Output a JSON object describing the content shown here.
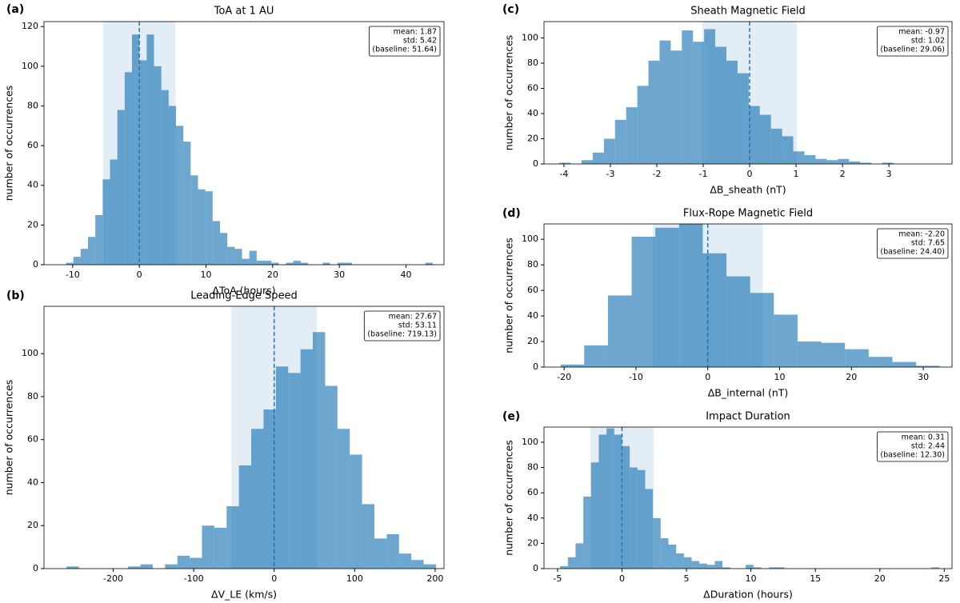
{
  "chart_data": [
    {
      "type": "histogram",
      "label": "(a)",
      "title": "ToA at 1 AU",
      "xlabel": "ΔToA (hours)",
      "ylabel": "number of occurrences",
      "color": "#1f77b4",
      "bins": [
        -11,
        -9.9,
        -8.8,
        -7.7,
        -6.6,
        -5.5,
        -4.4,
        -3.3,
        -2.2,
        -1.1,
        0,
        1.1,
        2.2,
        3.3,
        4.4,
        5.5,
        6.6,
        7.7,
        8.8,
        9.9,
        11,
        12.1,
        13.2,
        14.3,
        15.4,
        16.5,
        17.6,
        18.7,
        19.8,
        20.9,
        22,
        23.1,
        24.2,
        25.3,
        26.4,
        27.5,
        28.6,
        29.7,
        30.8,
        31.9,
        33,
        34.1,
        35.2,
        36.3,
        37.4,
        38.5,
        39.6,
        40.7,
        41.8,
        42.9,
        44
      ],
      "counts": [
        1,
        4,
        8,
        14,
        25,
        43,
        53,
        78,
        97,
        116,
        103,
        116,
        100,
        88,
        80,
        70,
        62,
        45,
        38,
        37,
        22,
        16,
        9,
        8,
        3,
        7,
        2,
        2,
        1,
        0,
        1,
        2,
        1,
        0,
        0,
        1,
        0,
        1,
        1,
        0,
        0,
        0,
        0,
        0,
        0,
        0,
        0,
        0,
        0,
        1
      ],
      "xlim": [
        -14.3,
        45.7
      ],
      "ylim": [
        0,
        122.5
      ],
      "xticks": [
        -10,
        0,
        10,
        20,
        30,
        40
      ],
      "yticks": [
        0,
        20,
        40,
        60,
        80,
        100,
        120
      ],
      "vline": 0,
      "shade": [
        -5.42,
        5.42
      ],
      "stats": [
        "mean: 1.87",
        "std: 5.42",
        "(baseline: 51.64)"
      ]
    },
    {
      "type": "histogram",
      "label": "(b)",
      "title": "Leading-Edge Speed",
      "xlabel": "ΔV_LE (km/s)",
      "ylabel": "number of occurrences",
      "color": "#1f77b4",
      "bins": [
        -258,
        -242.7,
        -227.4,
        -212.1,
        -196.8,
        -181.5,
        -166.2,
        -150.9,
        -135.6,
        -120.3,
        -105,
        -89.7,
        -74.4,
        -59.1,
        -43.8,
        -28.5,
        -13.2,
        2.1,
        17.4,
        32.7,
        48,
        63.3,
        78.6,
        93.9,
        109.2,
        124.5,
        139.8,
        155.1,
        170.4,
        185.7,
        201
      ],
      "counts": [
        1,
        0,
        0,
        0,
        0,
        1,
        2,
        0,
        2,
        6,
        5,
        20,
        19,
        29,
        48,
        65,
        74,
        94,
        91,
        102,
        110,
        85,
        65,
        53,
        30,
        14,
        16,
        7,
        4,
        2
      ],
      "xlim": [
        -286,
        211
      ],
      "ylim": [
        0,
        122
      ],
      "xticks": [
        -200,
        -100,
        0,
        100,
        200
      ],
      "yticks": [
        0,
        20,
        40,
        60,
        80,
        100
      ],
      "vline": 0,
      "shade": [
        -53.11,
        53.11
      ],
      "stats": [
        "mean: 27.67",
        "std: 53.11",
        "(baseline: 719.13)"
      ]
    },
    {
      "type": "histogram",
      "label": "(c)",
      "title": "Sheath Magnetic Field",
      "xlabel": "ΔB_sheath (nT)",
      "ylabel": "number of occurrences",
      "color": "#1f77b4",
      "bins": [
        -4.1,
        -3.86,
        -3.62,
        -3.38,
        -3.14,
        -2.9,
        -2.66,
        -2.42,
        -2.18,
        -1.94,
        -1.7,
        -1.46,
        -1.22,
        -0.98,
        -0.74,
        -0.5,
        -0.26,
        -0.02,
        0.22,
        0.46,
        0.7,
        0.94,
        1.18,
        1.42,
        1.66,
        1.9,
        2.14,
        2.38,
        2.62,
        2.86,
        3.1
      ],
      "counts": [
        1,
        0,
        3,
        9,
        20,
        35,
        45,
        62,
        82,
        98,
        90,
        106,
        97,
        107,
        93,
        82,
        72,
        46,
        39,
        28,
        22,
        10,
        7,
        4,
        3,
        4,
        2,
        1,
        0,
        1
      ],
      "xlim": [
        -4.43,
        4.36
      ],
      "ylim": [
        0,
        113
      ],
      "xticks": [
        -4,
        -3,
        -2,
        -1,
        0,
        1,
        2,
        3
      ],
      "yticks": [
        0,
        20,
        40,
        60,
        80,
        100
      ],
      "vline": 0,
      "shade": [
        -1.02,
        1.02
      ],
      "stats": [
        "mean: -0.97",
        "std: 1.02",
        "(baseline: 29.06)"
      ]
    },
    {
      "type": "histogram",
      "label": "(d)",
      "title": "Flux-Rope Magnetic Field",
      "xlabel": "ΔB_internal (nT)",
      "ylabel": "number of occurrences",
      "color": "#1f77b4",
      "bins": [
        -20.5,
        -17.2,
        -13.9,
        -10.6,
        -7.3,
        -4,
        -0.7,
        2.6,
        5.9,
        9.2,
        12.5,
        15.8,
        19.1,
        22.4,
        25.7,
        29,
        32.3
      ],
      "counts": [
        2,
        17,
        56,
        102,
        109,
        112,
        89,
        71,
        58,
        41,
        20,
        19,
        14,
        8,
        4,
        1
      ],
      "xlim": [
        -22.8,
        34
      ],
      "ylim": [
        0,
        112
      ],
      "xticks": [
        -20,
        -10,
        0,
        10,
        20,
        30
      ],
      "yticks": [
        0,
        20,
        40,
        60,
        80,
        100
      ],
      "vline": 0,
      "shade": [
        -7.65,
        7.65
      ],
      "stats": [
        "mean: -2.20",
        "std: 7.65",
        "(baseline: 24.40)"
      ]
    },
    {
      "type": "histogram",
      "label": "(e)",
      "title": "Impact Duration",
      "xlabel": "ΔDuration (hours)",
      "ylabel": "number of occurrences",
      "color": "#1f77b4",
      "bins": [
        -4.8,
        -4.2,
        -3.6,
        -3,
        -2.4,
        -1.8,
        -1.2,
        -0.6,
        0,
        0.6,
        1.2,
        1.8,
        2.4,
        3,
        3.6,
        4.2,
        4.8,
        5.4,
        6,
        6.6,
        7.2,
        7.8,
        8.4,
        9,
        9.6,
        10.2,
        10.8,
        11.4,
        12,
        12.6,
        13.2,
        13.8,
        14.4,
        15,
        15.6,
        16.2,
        16.8,
        17.4,
        18,
        18.6,
        19.2,
        19.8,
        20.4,
        21,
        21.6,
        22.2,
        22.8,
        23.4,
        24,
        24.6
      ],
      "counts": [
        2,
        9,
        20,
        57,
        84,
        106,
        111,
        106,
        97,
        80,
        78,
        63,
        40,
        24,
        19,
        12,
        9,
        6,
        4,
        3,
        6,
        1,
        0,
        0,
        3,
        1,
        0,
        1,
        1,
        0,
        0,
        0,
        0,
        0,
        0,
        0,
        0,
        0,
        0,
        0,
        0,
        0,
        0,
        0,
        0,
        0,
        0,
        0,
        1
      ],
      "xlim": [
        -6.05,
        25.6
      ],
      "ylim": [
        0,
        112
      ],
      "xticks": [
        -5,
        0,
        5,
        10,
        15,
        20,
        25
      ],
      "yticks": [
        0,
        20,
        40,
        60,
        80,
        100
      ],
      "vline": 0,
      "shade": [
        -2.44,
        2.44
      ],
      "stats": [
        "mean: 0.31",
        "std: 2.44",
        "(baseline: 12.30)"
      ]
    }
  ]
}
